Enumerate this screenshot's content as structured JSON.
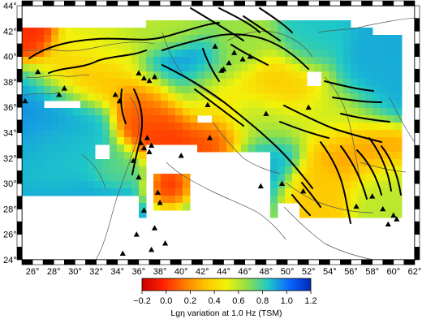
{
  "map": {
    "x_ticks": [
      "26°",
      "28°",
      "30°",
      "32°",
      "34°",
      "36°",
      "38°",
      "40°",
      "42°",
      "44°",
      "46°",
      "48°",
      "50°",
      "52°",
      "54°",
      "56°",
      "58°",
      "60°",
      "62°"
    ],
    "y_ticks": [
      "44°",
      "42°",
      "40°",
      "38°",
      "36°",
      "34°",
      "32°",
      "30°",
      "28°",
      "26°",
      "24°"
    ],
    "lon_range": [
      25,
      62
    ],
    "lat_range": [
      24,
      44
    ],
    "colorbar": {
      "min": -0.2,
      "max": 1.2,
      "tick_labels": [
        "−0.2",
        "0.0",
        "0.2",
        "0.4",
        "0.6",
        "0.8",
        "1.0",
        "1.2"
      ],
      "title": "Lgη variation at 1.0 Hz (TSM)",
      "colors": [
        "#cc0000",
        "#ff2000",
        "#ff7a00",
        "#ffc400",
        "#f2f20a",
        "#8ee04a",
        "#1ec8c8",
        "#0a64ff",
        "#0028b4"
      ]
    },
    "symbols": {
      "stations": "black triangles",
      "faults": "black lines"
    }
  }
}
